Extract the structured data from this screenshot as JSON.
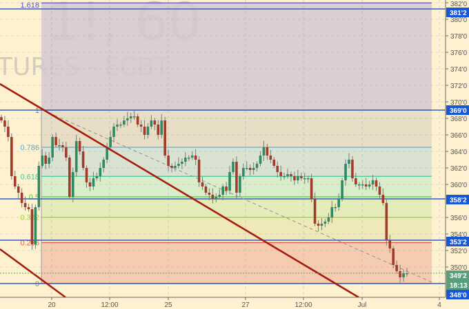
{
  "watermark": {
    "line1": "1!, 60",
    "line2": "TURES - ECBT"
  },
  "colors": {
    "background": "#fdf1d0",
    "bull": "#2e8a62",
    "bear": "#a33a2a",
    "trendline": "#a51c0c",
    "hline": "#2f5fc7",
    "price_label": "#1557d6",
    "last_price_label": "#5a9e7d"
  },
  "chart_data": {
    "type": "candlestick",
    "interval": "60",
    "y_ticks": [
      "382'0",
      "380'0",
      "378'0",
      "376'0",
      "374'0",
      "372'0",
      "370'0",
      "368'0",
      "366'0",
      "364'0",
      "362'0",
      "360'0",
      "356'0",
      "354'0",
      "352'0",
      "350'0"
    ],
    "y_tick_values": [
      382,
      380,
      378,
      376,
      374,
      372,
      370,
      368,
      366,
      364,
      362,
      360,
      356,
      354,
      352,
      350
    ],
    "x_ticks": [
      "20",
      "12:00",
      "25",
      "27",
      "12:00",
      "Jul",
      "4"
    ],
    "ylim": [
      346.5,
      382.3
    ],
    "closes": [
      367.75,
      367,
      365.75,
      361,
      359.75,
      359,
      357.75,
      357.25,
      357,
      352.75,
      357.25,
      362.25,
      363.5,
      362.5,
      363.25,
      365.75,
      364.75,
      364.75,
      364.5,
      363.25,
      358.5,
      361.5,
      365.25,
      364,
      362,
      360.25,
      359.75,
      360.75,
      361,
      362,
      363,
      364.5,
      365.75,
      367,
      367.25,
      367.25,
      367.75,
      368,
      368.25,
      368.25,
      367.25,
      367,
      366,
      367,
      367.75,
      367.25,
      366,
      367.75,
      363.5,
      362.25,
      362,
      362.25,
      362.5,
      362.75,
      363.25,
      363.25,
      363.5,
      363,
      360.25,
      359.75,
      359,
      358.75,
      358.25,
      358.5,
      358.75,
      359.75,
      359.25,
      361.5,
      362.75,
      359,
      361,
      362,
      362,
      361.75,
      362,
      362.5,
      363.5,
      364.5,
      363.5,
      363,
      362.25,
      361.5,
      361,
      361,
      361.25,
      361,
      360.5,
      361,
      360.75,
      360.75,
      360.75,
      358.25,
      355.25,
      355,
      355.25,
      355.5,
      356,
      357.25,
      357.25,
      358.25,
      360.5,
      362.5,
      363,
      360.75,
      360,
      360,
      360,
      359.75,
      360,
      360.5,
      359.75,
      358.75,
      357.75,
      353.25,
      352.25,
      350.25,
      349.5,
      348.75,
      349.25,
      349.25
    ],
    "fibonacci": {
      "price_at_0": 348,
      "price_at_1": 369,
      "levels": [
        {
          "ratio": 1.618,
          "label": "1.618",
          "color": "#5a4fc8",
          "fill": "#d3c8d0"
        },
        {
          "ratio": 1,
          "label": "1",
          "color": "#7a7a8a",
          "fill": "#e4dbc4"
        },
        {
          "ratio": 0.786,
          "label": "0.786",
          "color": "#5aa7d6",
          "fill": "#d3dfd2"
        },
        {
          "ratio": 0.618,
          "label": "0.618",
          "color": "#3dc99a",
          "fill": "#d3ecc9"
        },
        {
          "ratio": 0.5,
          "label": "0.5",
          "color": "#4ccc3c",
          "fill": "#dfebb6"
        },
        {
          "ratio": 0.382,
          "label": "0.382",
          "color": "#9bd13f",
          "fill": "#ece6b3"
        },
        {
          "ratio": 0.236,
          "label": "0.236",
          "color": "#e8585a",
          "fill": "#f4c6aa"
        },
        {
          "ratio": 0,
          "label": "0",
          "color": "#8a8a8a",
          "fill": null
        }
      ]
    },
    "horizontal_lines": [
      {
        "price": 381.25,
        "label": "381'2"
      },
      {
        "price": 369,
        "label": "369'0"
      },
      {
        "price": 358.25,
        "label": "358'2"
      },
      {
        "price": 353.25,
        "label": "353'2"
      },
      {
        "price": 348,
        "label": "348'0"
      }
    ],
    "last_price": {
      "price": 349.25,
      "label": "349'2",
      "countdown": "18:13"
    }
  }
}
